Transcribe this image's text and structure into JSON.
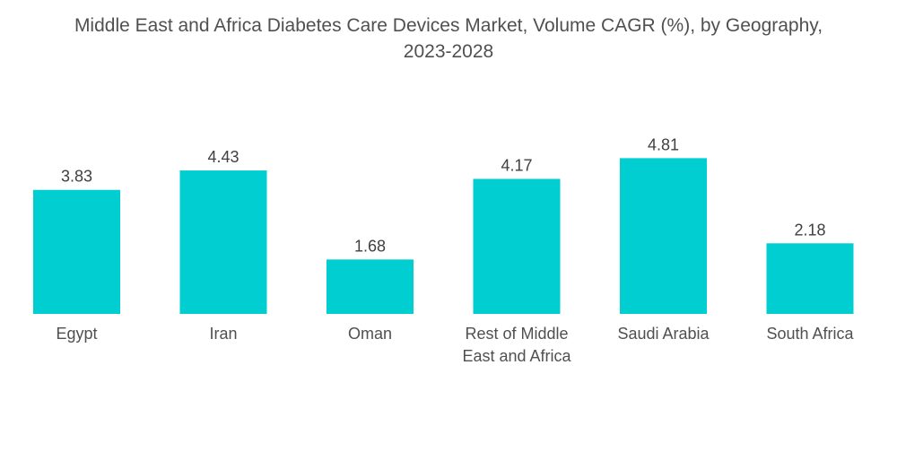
{
  "chart_data": {
    "type": "bar",
    "title_line1": "Middle East and Africa Diabetes Care Devices Market, Volume CAGR (%), by Geography,",
    "title_line2": "2023-2028",
    "categories": [
      "Egypt",
      "Iran",
      "Oman",
      "Rest of Middle East and Africa",
      "Saudi Arabia",
      "South Africa"
    ],
    "category_lines": [
      [
        "Egypt"
      ],
      [
        "Iran"
      ],
      [
        "Oman"
      ],
      [
        "Rest of Middle",
        "East and Africa"
      ],
      [
        "Saudi Arabia"
      ],
      [
        "South Africa"
      ]
    ],
    "values": [
      3.83,
      4.43,
      1.68,
      4.17,
      4.81,
      2.18
    ],
    "value_labels": [
      "3.83",
      "4.43",
      "1.68",
      "4.17",
      "4.81",
      "2.18"
    ],
    "xlabel": "",
    "ylabel": "",
    "ylim": [
      0,
      5
    ],
    "grid": false,
    "legend": "none",
    "bar_color": "#00CED1"
  }
}
